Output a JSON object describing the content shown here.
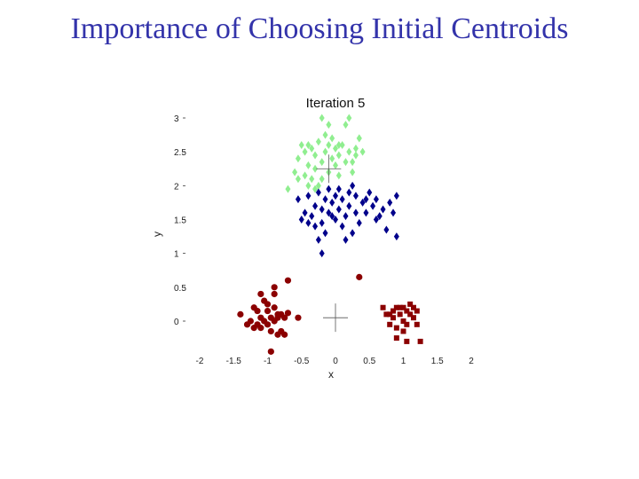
{
  "slide": {
    "title": "Importance of Choosing Initial Centroids"
  },
  "chart_data": {
    "type": "scatter",
    "title": "Iteration 5",
    "xlabel": "x",
    "ylabel": "y",
    "xlim": [
      -2,
      2
    ],
    "ylim": [
      -0.2,
      3
    ],
    "xticks": [
      "-2",
      "-1.5",
      "-1",
      "-0.5",
      "0",
      "0.5",
      "1",
      "1.5",
      "2"
    ],
    "xtick_values": [
      -2,
      -1.5,
      -1,
      -0.5,
      0,
      0.5,
      1,
      1.5,
      2
    ],
    "yticks": [
      "0",
      "0.5",
      "1",
      "1.5",
      "2",
      "2.5",
      "3"
    ],
    "ytick_values": [
      0,
      0.5,
      1,
      1.5,
      2,
      2.5,
      3
    ],
    "grid": false,
    "series": [
      {
        "color": "#90ee90",
        "marker": "diamond",
        "points": [
          [
            -0.7,
            1.95
          ],
          [
            -0.6,
            2.2
          ],
          [
            -0.55,
            2.4
          ],
          [
            -0.5,
            2.6
          ],
          [
            -0.45,
            2.5
          ],
          [
            -0.4,
            2.0
          ],
          [
            -0.4,
            2.3
          ],
          [
            -0.35,
            2.1
          ],
          [
            -0.35,
            2.55
          ],
          [
            -0.3,
            1.95
          ],
          [
            -0.3,
            2.25
          ],
          [
            -0.25,
            2.65
          ],
          [
            -0.25,
            2.0
          ],
          [
            -0.2,
            2.35
          ],
          [
            -0.2,
            2.1
          ],
          [
            -0.15,
            2.75
          ],
          [
            -0.15,
            2.5
          ],
          [
            -0.1,
            2.2
          ],
          [
            -0.1,
            2.6
          ],
          [
            -0.05,
            2.4
          ],
          [
            -0.05,
            2.7
          ],
          [
            0,
            2.3
          ],
          [
            0,
            2.55
          ],
          [
            0.05,
            2.15
          ],
          [
            0.05,
            2.45
          ],
          [
            0.1,
            2.6
          ],
          [
            0.15,
            2.35
          ],
          [
            0.2,
            2.5
          ],
          [
            0.25,
            2.2
          ],
          [
            0.3,
            2.55
          ],
          [
            0.35,
            2.7
          ],
          [
            0.4,
            2.5
          ],
          [
            0.15,
            2.9
          ],
          [
            0.2,
            3.0
          ],
          [
            0.3,
            2.45
          ],
          [
            -0.3,
            2.45
          ],
          [
            -0.45,
            2.15
          ],
          [
            -0.55,
            2.1
          ],
          [
            -0.2,
            3.0
          ],
          [
            -0.1,
            2.9
          ],
          [
            0.35,
            2.7
          ],
          [
            0.05,
            2.6
          ],
          [
            0.25,
            2.35
          ],
          [
            -0.4,
            2.6
          ]
        ]
      },
      {
        "color": "#00008b",
        "marker": "diamond",
        "points": [
          [
            -0.55,
            1.8
          ],
          [
            -0.5,
            1.5
          ],
          [
            -0.45,
            1.6
          ],
          [
            -0.4,
            1.85
          ],
          [
            -0.35,
            1.55
          ],
          [
            -0.3,
            1.7
          ],
          [
            -0.25,
            1.9
          ],
          [
            -0.2,
            1.45
          ],
          [
            -0.2,
            1.65
          ],
          [
            -0.15,
            1.3
          ],
          [
            -0.15,
            1.8
          ],
          [
            -0.1,
            1.6
          ],
          [
            -0.1,
            1.95
          ],
          [
            -0.05,
            1.75
          ],
          [
            0,
            1.85
          ],
          [
            0,
            1.5
          ],
          [
            0.05,
            1.65
          ],
          [
            0.05,
            1.95
          ],
          [
            0.1,
            1.4
          ],
          [
            0.1,
            1.8
          ],
          [
            0.15,
            1.55
          ],
          [
            0.2,
            1.7
          ],
          [
            0.2,
            1.9
          ],
          [
            0.25,
            1.3
          ],
          [
            0.25,
            2.0
          ],
          [
            0.3,
            1.6
          ],
          [
            0.3,
            1.85
          ],
          [
            0.35,
            1.45
          ],
          [
            0.4,
            1.75
          ],
          [
            0.45,
            1.6
          ],
          [
            0.5,
            1.9
          ],
          [
            0.55,
            1.7
          ],
          [
            0.6,
            1.8
          ],
          [
            0.65,
            1.55
          ],
          [
            0.7,
            1.65
          ],
          [
            0.75,
            1.35
          ],
          [
            0.8,
            1.75
          ],
          [
            0.85,
            1.6
          ],
          [
            0.9,
            1.85
          ],
          [
            0.9,
            1.25
          ],
          [
            -0.25,
            1.2
          ],
          [
            -0.2,
            1.0
          ],
          [
            0.15,
            1.2
          ],
          [
            -0.4,
            1.45
          ],
          [
            -0.3,
            1.4
          ],
          [
            0.45,
            1.8
          ],
          [
            -0.05,
            1.55
          ],
          [
            0.6,
            1.5
          ]
        ]
      },
      {
        "color": "#8b0000",
        "marker": "circle",
        "points": [
          [
            -1.4,
            0.1
          ],
          [
            -1.3,
            -0.05
          ],
          [
            -1.25,
            0.0
          ],
          [
            -1.2,
            -0.1
          ],
          [
            -1.2,
            0.2
          ],
          [
            -1.15,
            -0.05
          ],
          [
            -1.1,
            0.05
          ],
          [
            -1.1,
            -0.1
          ],
          [
            -1.05,
            0.3
          ],
          [
            -1.05,
            0.0
          ],
          [
            -1.0,
            0.15
          ],
          [
            -1.0,
            -0.05
          ],
          [
            -0.95,
            0.05
          ],
          [
            -0.95,
            -0.15
          ],
          [
            -0.9,
            0.2
          ],
          [
            -0.9,
            0.0
          ],
          [
            -0.85,
            0.1
          ],
          [
            -0.85,
            -0.2
          ],
          [
            -0.8,
            0.1
          ],
          [
            -0.8,
            -0.15
          ],
          [
            -0.75,
            0.05
          ],
          [
            -0.7,
            0.12
          ],
          [
            -0.55,
            0.05
          ],
          [
            -1.1,
            0.4
          ],
          [
            -0.9,
            0.4
          ],
          [
            -0.9,
            0.5
          ],
          [
            -0.7,
            0.6
          ],
          [
            -0.95,
            -0.45
          ],
          [
            -1.0,
            0.25
          ],
          [
            -1.15,
            0.15
          ],
          [
            -0.85,
            0.05
          ],
          [
            -0.75,
            -0.2
          ],
          [
            0.35,
            0.65
          ]
        ]
      },
      {
        "color": "#8b0000",
        "marker": "square",
        "points": [
          [
            0.7,
            0.2
          ],
          [
            0.75,
            0.1
          ],
          [
            0.8,
            -0.05
          ],
          [
            0.85,
            0.15
          ],
          [
            0.85,
            0.05
          ],
          [
            0.9,
            0.2
          ],
          [
            0.9,
            -0.1
          ],
          [
            0.95,
            0.1
          ],
          [
            1.0,
            0.2
          ],
          [
            1.0,
            0.0
          ],
          [
            1.05,
            0.15
          ],
          [
            1.05,
            -0.05
          ],
          [
            1.1,
            0.25
          ],
          [
            1.1,
            0.1
          ],
          [
            1.15,
            0.05
          ],
          [
            1.2,
            0.15
          ],
          [
            1.2,
            -0.05
          ],
          [
            0.9,
            -0.25
          ],
          [
            1.05,
            -0.3
          ],
          [
            1.25,
            -0.3
          ],
          [
            0.95,
            0.2
          ],
          [
            1.15,
            0.2
          ],
          [
            0.8,
            0.1
          ],
          [
            1.0,
            -0.15
          ]
        ]
      }
    ],
    "centroids": [
      [
        -0.1,
        2.25
      ],
      [
        0.0,
        0.05
      ]
    ]
  }
}
